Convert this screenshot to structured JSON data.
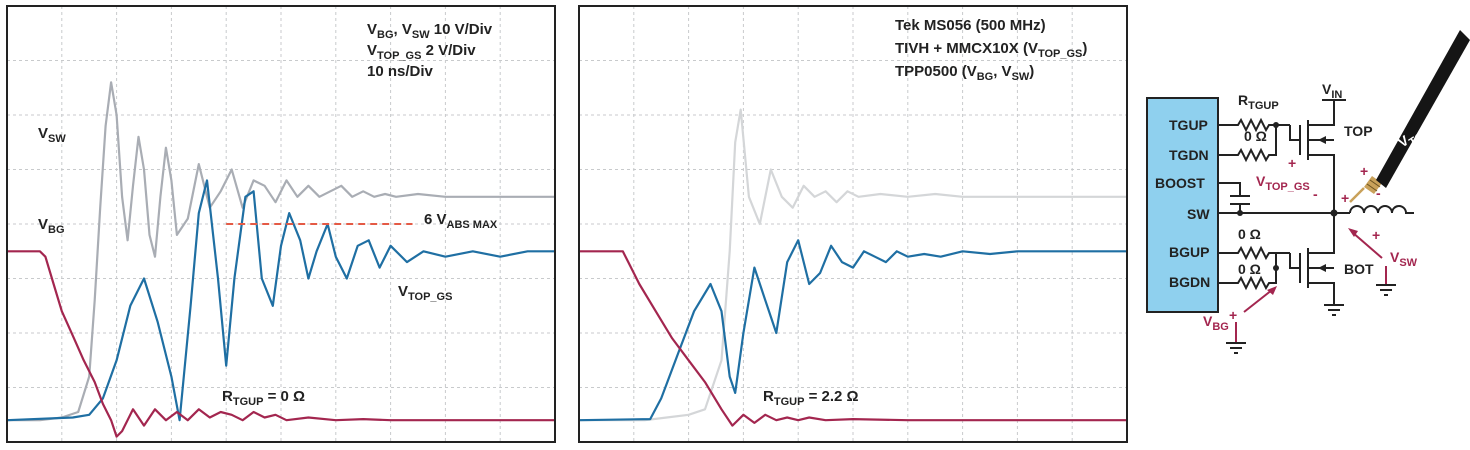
{
  "colors": {
    "vbg": "#a3264f",
    "vtop_gs": "#1f6fa3",
    "vsw": "#a9adb4",
    "vsw_faded": "#d4d6d8",
    "limit": "#e45a45",
    "ic_fill": "#8fd0ee",
    "probe": "#c9a15a"
  },
  "chart_data": [
    {
      "type": "line",
      "annotations": {
        "scale_line1_a": "V",
        "scale_line1_a_sub": "BG",
        "scale_line1_b": ", V",
        "scale_line1_b_sub": "SW",
        "scale_line1_c": " 10 V/Div",
        "scale_line2_a": "V",
        "scale_line2_a_sub": "TOP_GS",
        "scale_line2_b": " 2 V/Div",
        "scale_line3": "10 ns/Div",
        "vsw_a": "V",
        "vsw_sub": "SW",
        "vbg_a": "V",
        "vbg_sub": "BG",
        "vtop_a": "V",
        "vtop_sub": "TOP_GS",
        "limit_a": "6 V",
        "limit_sub": "ABS MAX",
        "r_a": "R",
        "r_sub": "TGUP",
        "r_val": " = 0 Ω"
      },
      "x_divisions": 10,
      "y_divisions": 8,
      "series": [
        {
          "name": "V_SW",
          "x": [
            0,
            0.6,
            1.0,
            1.3,
            1.5,
            1.6,
            1.7,
            1.8,
            1.9,
            2.0,
            2.1,
            2.2,
            2.3,
            2.4,
            2.5,
            2.6,
            2.7,
            2.8,
            2.9,
            3.0,
            3.1,
            3.3,
            3.5,
            3.7,
            3.9,
            4.1,
            4.3,
            4.5,
            4.7,
            4.9,
            5.1,
            5.3,
            5.5,
            5.7,
            5.9,
            6.1,
            6.3,
            6.5,
            6.7,
            6.9,
            7.1,
            7.5,
            8.0,
            9.0,
            10.0
          ],
          "y": [
            0.4,
            0.4,
            0.45,
            0.55,
            1.2,
            2.6,
            4.3,
            5.8,
            6.6,
            6.0,
            4.5,
            3.7,
            4.7,
            5.6,
            5.0,
            3.8,
            3.4,
            4.5,
            5.4,
            4.8,
            3.8,
            4.1,
            5.1,
            4.3,
            4.6,
            5.0,
            4.3,
            4.8,
            4.7,
            4.4,
            4.8,
            4.5,
            4.7,
            4.5,
            4.6,
            4.7,
            4.5,
            4.6,
            4.5,
            4.55,
            4.5,
            4.55,
            4.5,
            4.5,
            4.5
          ]
        },
        {
          "name": "V_TOP_GS",
          "x": [
            0,
            1.2,
            1.5,
            1.75,
            2.0,
            2.25,
            2.5,
            2.75,
            3.0,
            3.15,
            3.35,
            3.5,
            3.65,
            3.85,
            4.0,
            4.15,
            4.35,
            4.5,
            4.65,
            4.85,
            5.0,
            5.15,
            5.35,
            5.5,
            5.65,
            5.85,
            6.0,
            6.2,
            6.4,
            6.6,
            6.8,
            7.0,
            7.3,
            7.6,
            8.0,
            8.5,
            9.0,
            9.5,
            10.0
          ],
          "y": [
            0.4,
            0.45,
            0.5,
            0.8,
            1.5,
            2.5,
            3.0,
            2.2,
            1.2,
            0.4,
            2.5,
            4.2,
            4.8,
            3.0,
            1.4,
            3.0,
            4.5,
            4.6,
            3.0,
            2.5,
            3.6,
            4.2,
            3.7,
            3.0,
            3.5,
            4.0,
            3.4,
            3.0,
            3.6,
            3.7,
            3.2,
            3.6,
            3.3,
            3.5,
            3.4,
            3.5,
            3.4,
            3.5,
            3.5
          ]
        },
        {
          "name": "V_BG",
          "x": [
            0,
            0.6,
            0.7,
            0.85,
            1.0,
            1.2,
            1.4,
            1.6,
            1.75,
            1.9,
            2.0,
            2.1,
            2.3,
            2.5,
            2.7,
            2.9,
            3.1,
            3.3,
            3.5,
            3.7,
            3.9,
            4.1,
            4.3,
            4.5,
            4.7,
            4.9,
            5.1,
            5.5,
            6.0,
            6.5,
            7.0,
            8.0,
            9.0,
            10.0
          ],
          "y": [
            3.5,
            3.5,
            3.4,
            2.9,
            2.4,
            1.95,
            1.5,
            1.1,
            0.7,
            0.4,
            0.1,
            0.2,
            0.6,
            0.3,
            0.6,
            0.4,
            0.55,
            0.4,
            0.6,
            0.45,
            0.55,
            0.5,
            0.4,
            0.55,
            0.45,
            0.5,
            0.4,
            0.45,
            0.4,
            0.42,
            0.4,
            0.4,
            0.4,
            0.4
          ]
        }
      ],
      "limit_line": {
        "y": 4.0,
        "x_start": 4.0,
        "x_end": 7.4
      }
    },
    {
      "type": "line",
      "annotations": {
        "info_line1": "Tek MS056 (500 MHz)",
        "info_line2_a": "TIVH + MMCX10X (V",
        "info_line2_sub": "TOP_GS",
        "info_line2_b": ")",
        "info_line3_a": "TPP0500 (V",
        "info_line3_sub1": "BG",
        "info_line3_mid": ", V",
        "info_line3_sub2": "SW",
        "info_line3_b": ")",
        "r_a": "R",
        "r_sub": "TGUP",
        "r_val": " = 2.2 Ω"
      },
      "x_divisions": 10,
      "y_divisions": 8,
      "series": [
        {
          "name": "V_SW",
          "x": [
            0,
            1.2,
            1.6,
            2.0,
            2.3,
            2.6,
            2.75,
            2.85,
            2.95,
            3.1,
            3.3,
            3.5,
            3.7,
            3.9,
            4.1,
            4.3,
            4.5,
            4.7,
            4.9,
            5.1,
            5.5,
            6.0,
            6.5,
            7.0,
            8.0,
            9.0,
            10.0
          ],
          "y": [
            0.4,
            0.4,
            0.45,
            0.5,
            0.6,
            1.5,
            3.5,
            5.5,
            6.1,
            4.5,
            4.0,
            5.0,
            4.5,
            4.3,
            4.7,
            4.5,
            4.6,
            4.4,
            4.6,
            4.5,
            4.55,
            4.5,
            4.55,
            4.5,
            4.5,
            4.5,
            4.5
          ]
        },
        {
          "name": "V_TOP_GS",
          "x": [
            0,
            1.3,
            1.5,
            1.8,
            2.1,
            2.4,
            2.6,
            2.75,
            2.85,
            3.0,
            3.2,
            3.4,
            3.6,
            3.8,
            4.0,
            4.2,
            4.4,
            4.6,
            4.8,
            5.0,
            5.2,
            5.4,
            5.6,
            5.8,
            6.0,
            6.3,
            6.6,
            7.0,
            7.5,
            8.0,
            9.0,
            10.0
          ],
          "y": [
            0.4,
            0.42,
            0.8,
            1.6,
            2.4,
            2.9,
            2.4,
            1.2,
            0.9,
            2.0,
            3.2,
            2.6,
            2.0,
            3.3,
            3.7,
            2.9,
            3.1,
            3.6,
            3.3,
            3.2,
            3.5,
            3.4,
            3.3,
            3.5,
            3.4,
            3.45,
            3.4,
            3.5,
            3.45,
            3.5,
            3.5,
            3.5
          ]
        },
        {
          "name": "V_BG",
          "x": [
            0,
            0.8,
            0.9,
            1.1,
            1.4,
            1.7,
            2.0,
            2.3,
            2.6,
            2.8,
            3.0,
            3.2,
            3.4,
            3.6,
            3.8,
            4.0,
            4.2,
            4.5,
            5.0,
            6.0,
            7.0,
            8.0,
            9.0,
            10.0
          ],
          "y": [
            3.5,
            3.5,
            3.3,
            2.9,
            2.4,
            1.9,
            1.5,
            1.1,
            0.6,
            0.3,
            0.5,
            0.35,
            0.5,
            0.4,
            0.45,
            0.4,
            0.45,
            0.4,
            0.42,
            0.4,
            0.4,
            0.4,
            0.4,
            0.4
          ]
        }
      ]
    }
  ],
  "schematic": {
    "ic_pins": [
      "TGUP",
      "TGDN",
      "BOOST",
      "SW",
      "BGUP",
      "BGDN"
    ],
    "rtgup_a": "R",
    "rtgup_sub": "TGUP",
    "r_top_val": "0 Ω",
    "r_bgup_val": "0 Ω",
    "r_bgdn_val": "0 Ω",
    "vin_a": "V",
    "vin_sub": "IN",
    "top_label": "TOP",
    "bot_label": "BOT",
    "probe_a": "V",
    "probe_sub": "TOP_GS",
    "vtop_a": "V",
    "vtop_sub": "TOP_GS",
    "vsw_a": "V",
    "vsw_sub": "SW",
    "vbg_a": "V",
    "vbg_sub": "BG",
    "plus": "+",
    "minus": "-"
  }
}
